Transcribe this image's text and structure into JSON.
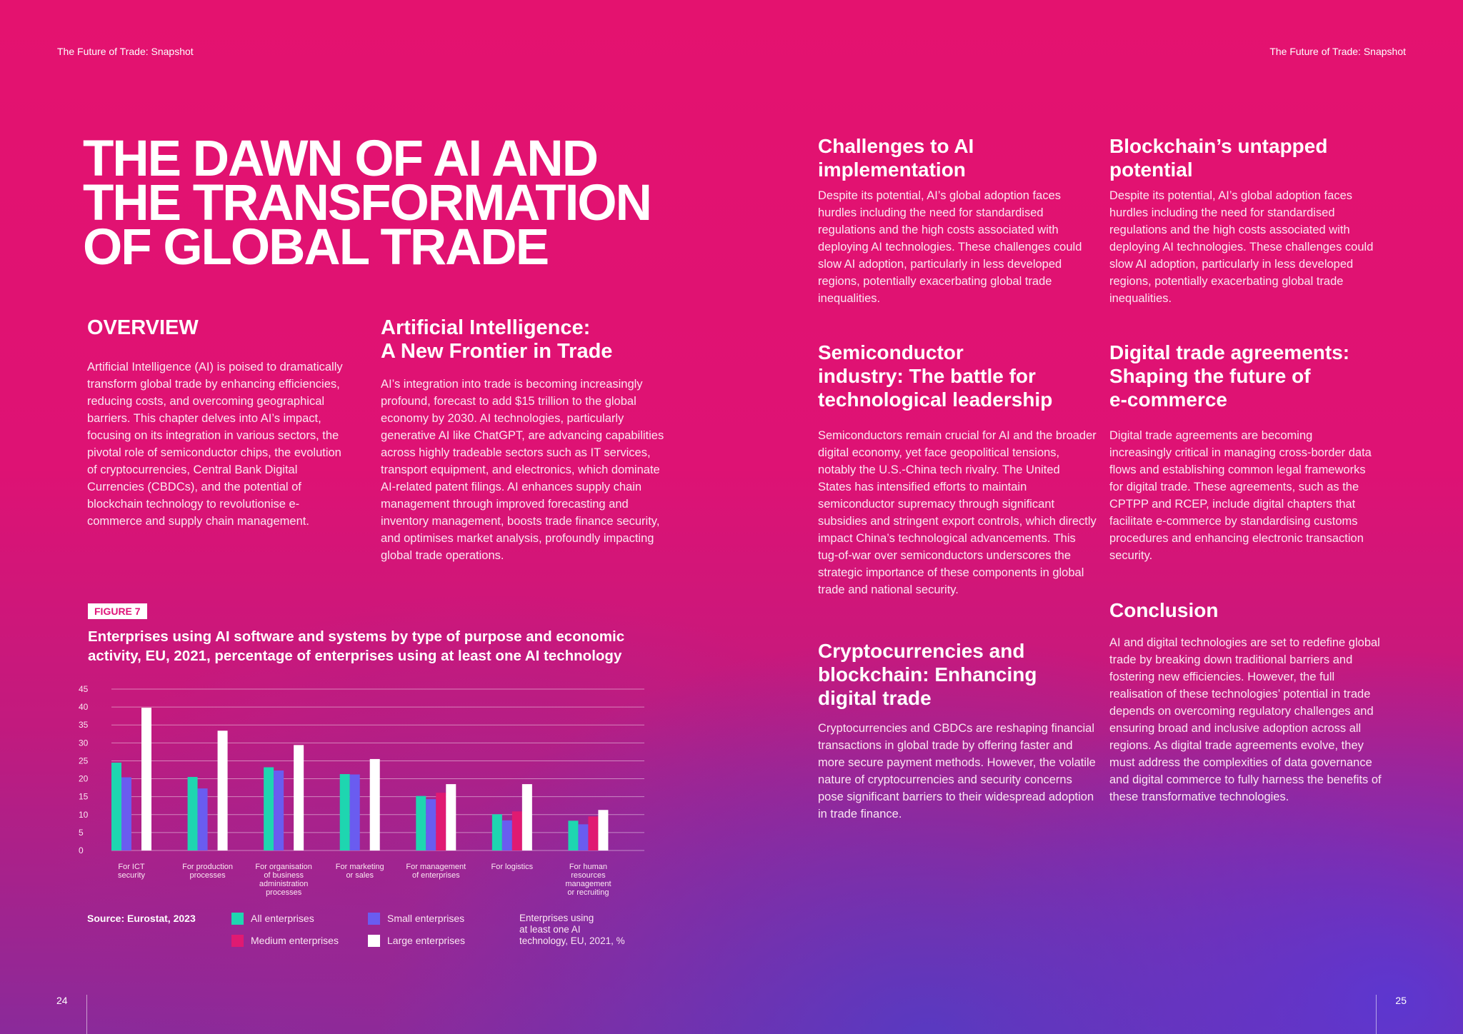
{
  "header": {
    "left": "The Future of Trade: Snapshot",
    "right": "The Future of Trade: Snapshot"
  },
  "page_numbers": {
    "left": "24",
    "right": "25"
  },
  "title": {
    "line1": "THE DAWN OF AI AND",
    "line2": "THE TRANSFORMATION",
    "line3": "OF GLOBAL TRADE"
  },
  "overview": {
    "heading": "OVERVIEW",
    "body": "Artificial Intelligence (AI) is poised to dramatically transform global trade by enhancing efficiencies, reducing costs, and overcoming geographical barriers. This chapter delves into AI’s impact, focusing on its integration in various sectors, the pivotal role of semiconductor chips, the evolution of cryptocurrencies, Central Bank Digital Currencies (CBDCs), and the potential of blockchain technology to revolutionise e-commerce and supply chain management."
  },
  "ai_frontier": {
    "heading_line1": "Artificial Intelligence:",
    "heading_line2": "A New Frontier in Trade",
    "body": "AI’s integration into trade is becoming increasingly profound, forecast to add $15 trillion to the global economy by 2030. AI technologies, particularly generative AI like ChatGPT, are advancing capabilities across highly tradeable sectors such as IT services, transport equipment, and electronics, which dominate AI-related patent filings. AI enhances supply chain management through improved forecasting and inventory management, boosts trade finance security, and optimises market analysis, profoundly impacting global trade operations."
  },
  "challenges": {
    "heading_line1": "Challenges to AI",
    "heading_line2": "implementation",
    "body": "Despite its potential, AI’s global adoption faces hurdles including the need for standardised regulations and the high costs associated with deploying AI technologies. These challenges could slow AI adoption, particularly in less developed regions, potentially exacerbating global trade inequalities."
  },
  "blockchain": {
    "heading_line1": "Blockchain’s untapped",
    "heading_line2": "potential",
    "body": "Despite its potential, AI’s global adoption faces hurdles including the need for standardised regulations and the high costs associated with deploying AI technologies. These challenges could slow AI adoption, particularly in less developed regions, potentially exacerbating global trade inequalities."
  },
  "semiconductor": {
    "heading_line1": "Semiconductor",
    "heading_line2": "industry: The battle for",
    "heading_line3": "technological leadership",
    "body": "Semiconductors remain crucial for AI and the broader digital economy, yet face geopolitical tensions, notably the U.S.-China tech rivalry. The United States has intensified efforts to maintain semiconductor supremacy through significant subsidies and stringent export controls, which directly impact China’s technological advancements. This tug-of-war over semiconductors underscores the strategic importance of these components in global trade and national security."
  },
  "digital_trade": {
    "heading_line1": "Digital trade agreements:",
    "heading_line2": "Shaping the future of",
    "heading_line3": "e-commerce",
    "body": "Digital trade agreements are becoming increasingly critical in managing cross-border data flows and establishing common legal frameworks for digital trade. These agreements, such as the CPTPP and RCEP, include digital chapters that facilitate e-commerce by standardising customs procedures and enhancing electronic transaction security."
  },
  "crypto": {
    "heading_line1": "Cryptocurrencies and",
    "heading_line2": "blockchain: Enhancing",
    "heading_line3": "digital trade",
    "body": "Cryptocurrencies and CBDCs are reshaping financial transactions in global trade by offering faster and more secure payment methods. However, the volatile nature of cryptocurrencies and security concerns pose significant barriers to their widespread adoption in trade finance."
  },
  "conclusion": {
    "heading": "Conclusion",
    "body": "AI and digital technologies are set to redefine global trade by breaking down traditional barriers and fostering new efficiencies. However, the full realisation of these technologies’ potential in trade depends on overcoming regulatory challenges and ensuring broad and inclusive adoption across all regions. As digital trade agreements evolve, they must address the complexities of data governance and digital commerce to fully harness the benefits of these transformative technologies."
  },
  "figure": {
    "badge": "FIGURE 7",
    "title_line1": "Enterprises using AI software and systems by type of purpose and economic",
    "title_line2": "activity, EU, 2021, percentage of enterprises using at least one AI technology",
    "source": "Source: Eurostat, 2023",
    "legend": [
      {
        "label": "All enterprises",
        "color": "#1ed6b0"
      },
      {
        "label": "Small enterprises",
        "color": "#6a5cf0"
      },
      {
        "label": "Medium enterprises",
        "color": "#e01a72"
      },
      {
        "label": "Large enterprises",
        "color": "#ffffff"
      }
    ],
    "note_line1": "Enterprises using",
    "note_line2": "at least one AI",
    "note_line3": "technology, EU, 2021, %"
  },
  "chart_data": {
    "type": "bar",
    "title": "Enterprises using AI software and systems by type of purpose and economic activity, EU, 2021, percentage of enterprises using at least one AI technology",
    "categories": [
      [
        "For ICT",
        "security"
      ],
      [
        "For production",
        "processes"
      ],
      [
        "For organisation",
        "of business",
        "administration",
        "processes"
      ],
      [
        "For marketing",
        "or sales"
      ],
      [
        "For management",
        "of enterprises"
      ],
      [
        "For logistics"
      ],
      [
        "For human",
        "resources",
        "management",
        "or recruiting"
      ]
    ],
    "yticks": [
      0,
      5,
      10,
      15,
      20,
      25,
      30,
      35,
      40,
      45
    ],
    "ylim": [
      0,
      45
    ],
    "grid": true,
    "legend_position": "bottom",
    "series": [
      {
        "name": "All enterprises",
        "color": "#1ed6b0",
        "values": [
          24.5,
          20.5,
          23.2,
          21.3,
          15.2,
          10.1,
          8.3
        ]
      },
      {
        "name": "Small enterprises",
        "color": "#6a5cf0",
        "values": [
          20.4,
          17.3,
          22.3,
          21.2,
          14.3,
          8.4,
          7.3
        ]
      },
      {
        "name": "Medium enterprises",
        "color": "#e01a72",
        "values": [
          0,
          0,
          0,
          0,
          16.1,
          10.9,
          9.5
        ]
      },
      {
        "name": "Large enterprises",
        "color": "#ffffff",
        "values": [
          39.8,
          33.4,
          29.4,
          25.5,
          18.5,
          18.5,
          11.3
        ]
      }
    ]
  }
}
